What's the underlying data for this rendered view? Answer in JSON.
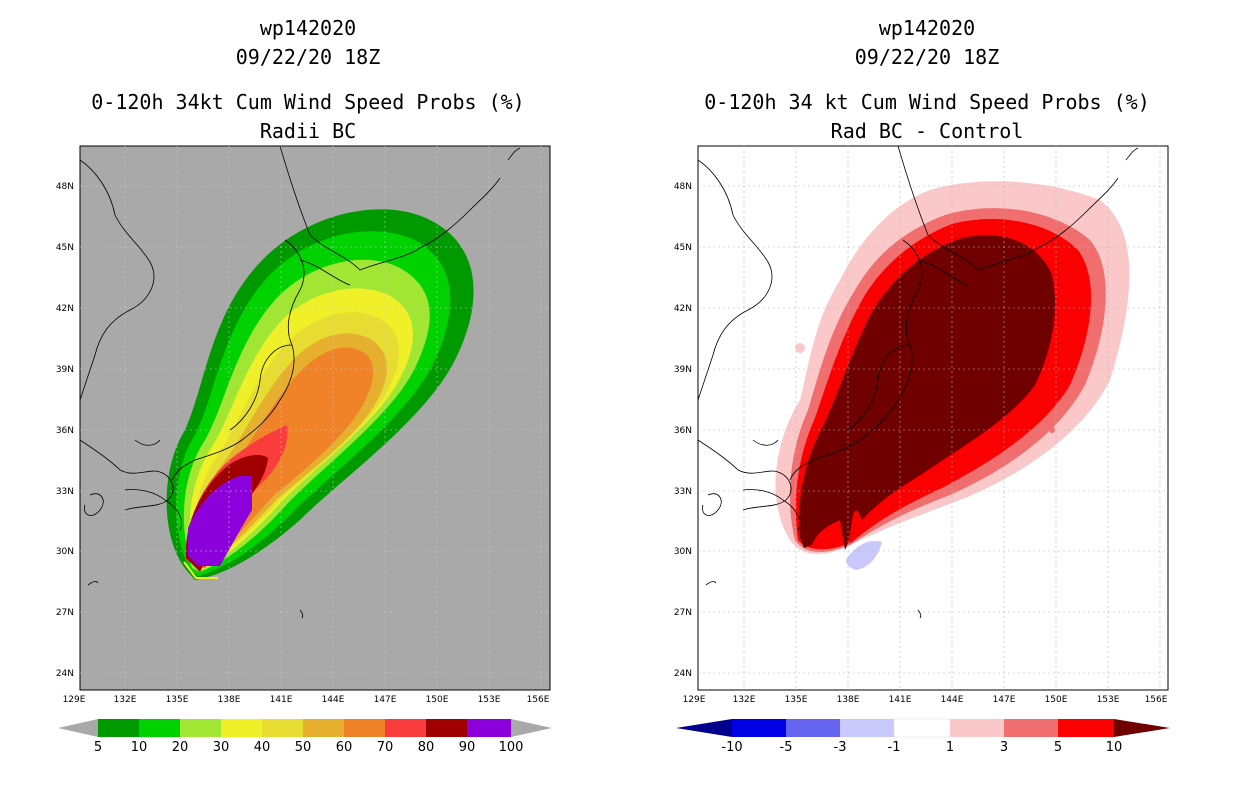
{
  "panels": [
    {
      "id": "left",
      "title_line1": "wp142020",
      "title_line2": "09/22/20 18Z",
      "title_line3": "0-120h 34kt Cum Wind Speed Probs (%)",
      "title_line4": "Radii BC",
      "background": "#a9a9a9",
      "x_ticks": [
        "129E",
        "132E",
        "135E",
        "138E",
        "141E",
        "144E",
        "147E",
        "150E",
        "153E",
        "156E"
      ],
      "y_ticks": [
        "48N",
        "45N",
        "42N",
        "39N",
        "36N",
        "33N",
        "30N",
        "27N",
        "24N"
      ],
      "colorbar": {
        "colors": [
          "#a9a9a9",
          "#009a00",
          "#00d200",
          "#a0e632",
          "#f0f028",
          "#e6dc32",
          "#e6af2d",
          "#f08228",
          "#fa3c3c",
          "#a00000",
          "#8c00dc",
          "#a9a9a9"
        ],
        "labels": [
          "5",
          "10",
          "20",
          "30",
          "40",
          "50",
          "60",
          "70",
          "80",
          "90",
          "100"
        ]
      }
    },
    {
      "id": "right",
      "title_line1": "wp142020",
      "title_line2": "09/22/20 18Z",
      "title_line3": "0-120h 34 kt Cum Wind Speed Probs (%)",
      "title_line4": "Rad BC - Control",
      "background": "#ffffff",
      "x_ticks": [
        "129E",
        "132E",
        "135E",
        "138E",
        "141E",
        "144E",
        "147E",
        "150E",
        "153E",
        "156E"
      ],
      "y_ticks": [
        "48N",
        "45N",
        "42N",
        "39N",
        "36N",
        "33N",
        "30N",
        "27N",
        "24N"
      ],
      "colorbar": {
        "colors": [
          "#00008c",
          "#0000e6",
          "#6464f0",
          "#c8c8fa",
          "#ffffff",
          "#fac8c8",
          "#f06e6e",
          "#fa0000",
          "#700000"
        ],
        "labels": [
          "-10",
          "-5",
          "-3",
          "-1",
          "1",
          "3",
          "5",
          "10"
        ]
      }
    }
  ]
}
